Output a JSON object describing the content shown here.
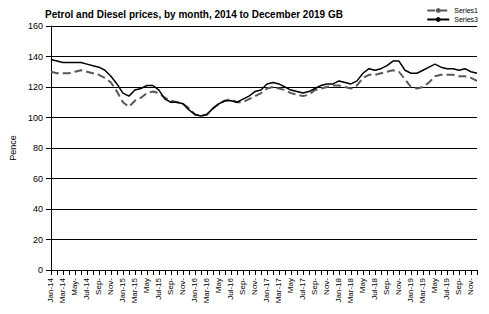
{
  "chart_data": {
    "type": "line",
    "title": "Petrol and Diesel prices, by month, 2014 to December 2019 GB",
    "y_label": "Pence",
    "categories": [
      "Jan-14",
      null,
      "Mar-14",
      null,
      "May-",
      null,
      "Jul-14",
      null,
      "Sep-",
      null,
      "Nov-",
      null,
      "Jan-15",
      null,
      "Mar-15",
      null,
      "May",
      null,
      "Jul-15",
      null,
      "Sep-",
      null,
      "Nov-",
      null,
      "Jan-16",
      null,
      "Mar-16",
      null,
      "May",
      null,
      "Jul-16",
      null,
      "Sep-",
      null,
      "Nov-",
      null,
      "Jan-17",
      null,
      "Mar-17",
      null,
      "May",
      null,
      "Jul-17",
      null,
      "Sep-",
      null,
      "Nov-",
      null,
      "Jan-18",
      null,
      "Mar-18",
      null,
      "May",
      null,
      "Jul-18",
      null,
      "Sep-",
      null,
      "Nov-",
      null,
      "Jan-19",
      null,
      "Mar-19",
      null,
      "May",
      null,
      "Jul-19",
      null,
      "Sep-",
      null,
      "Nov-",
      null
    ],
    "series": [
      {
        "name": "Series1",
        "color": "#595959",
        "line_style": "dashed",
        "values": [
          130,
          129,
          129,
          129,
          130,
          131,
          130,
          129,
          128,
          126,
          123,
          117,
          110,
          107,
          111,
          113,
          116,
          117,
          116,
          113,
          111,
          110,
          109,
          106,
          102,
          101,
          102,
          106,
          109,
          111,
          112,
          110,
          110,
          112,
          114,
          116,
          119,
          120,
          119,
          118,
          116,
          115,
          114,
          115,
          118,
          119,
          120,
          121,
          121,
          120,
          119,
          121,
          126,
          128,
          128,
          129,
          130,
          131,
          130,
          125,
          120,
          119,
          120,
          123,
          127,
          128,
          128,
          128,
          127,
          127,
          126,
          124
        ]
      },
      {
        "name": "Series3",
        "color": "#000000",
        "line_style": "solid",
        "values": [
          138,
          137,
          136,
          136,
          136,
          136,
          135,
          134,
          133,
          131,
          127,
          122,
          116,
          114,
          118,
          119,
          121,
          121,
          118,
          112,
          110,
          110,
          109,
          105,
          102,
          101,
          102,
          106,
          109,
          111,
          111,
          110,
          112,
          114,
          117,
          118,
          122,
          123,
          122,
          120,
          118,
          117,
          116,
          117,
          119,
          121,
          122,
          122,
          124,
          123,
          122,
          124,
          129,
          132,
          131,
          132,
          134,
          137,
          137,
          131,
          129,
          129,
          131,
          133,
          135,
          133,
          132,
          132,
          131,
          132,
          130,
          129
        ]
      }
    ],
    "ylim": [
      0,
      160
    ],
    "yticks": [
      0,
      20,
      40,
      60,
      80,
      100,
      120,
      140,
      160
    ],
    "grid": true,
    "legend": "top-right"
  }
}
